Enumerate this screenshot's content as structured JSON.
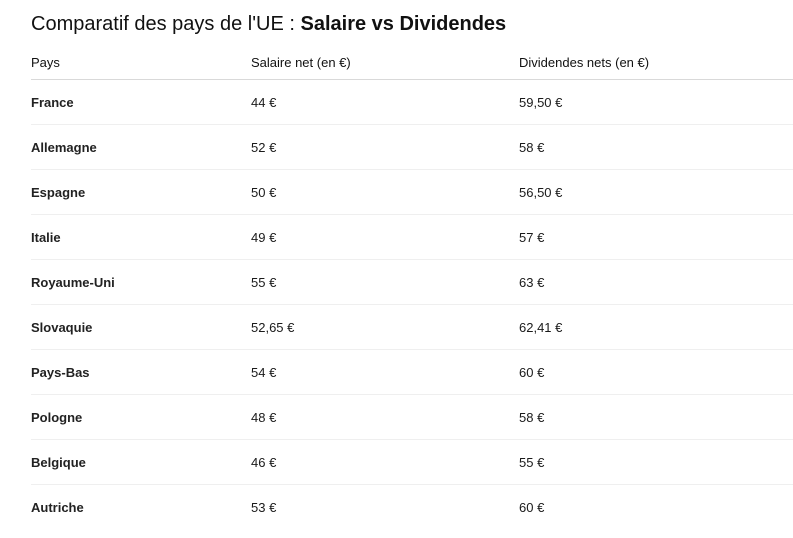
{
  "title": {
    "prefix": "Comparatif des pays de l'UE : ",
    "emphasis": "Salaire vs Dividendes"
  },
  "table": {
    "headers": [
      "Pays",
      "Salaire net (en €)",
      "Dividendes nets (en €)"
    ],
    "rows": [
      {
        "country": "France",
        "salary": "44 €",
        "dividends": "59,50 €"
      },
      {
        "country": "Allemagne",
        "salary": "52 €",
        "dividends": "58 €"
      },
      {
        "country": "Espagne",
        "salary": "50 €",
        "dividends": "56,50 €"
      },
      {
        "country": "Italie",
        "salary": "49 €",
        "dividends": "57 €"
      },
      {
        "country": "Royaume-Uni",
        "salary": "55 €",
        "dividends": "63 €"
      },
      {
        "country": "Slovaquie",
        "salary": "52,65 €",
        "dividends": "62,41 €"
      },
      {
        "country": "Pays-Bas",
        "salary": "54 €",
        "dividends": "60 €"
      },
      {
        "country": "Pologne",
        "salary": "48 €",
        "dividends": "58 €"
      },
      {
        "country": "Belgique",
        "salary": "46 €",
        "dividends": "55 €"
      },
      {
        "country": "Autriche",
        "salary": "53 €",
        "dividends": "60 €"
      }
    ]
  }
}
